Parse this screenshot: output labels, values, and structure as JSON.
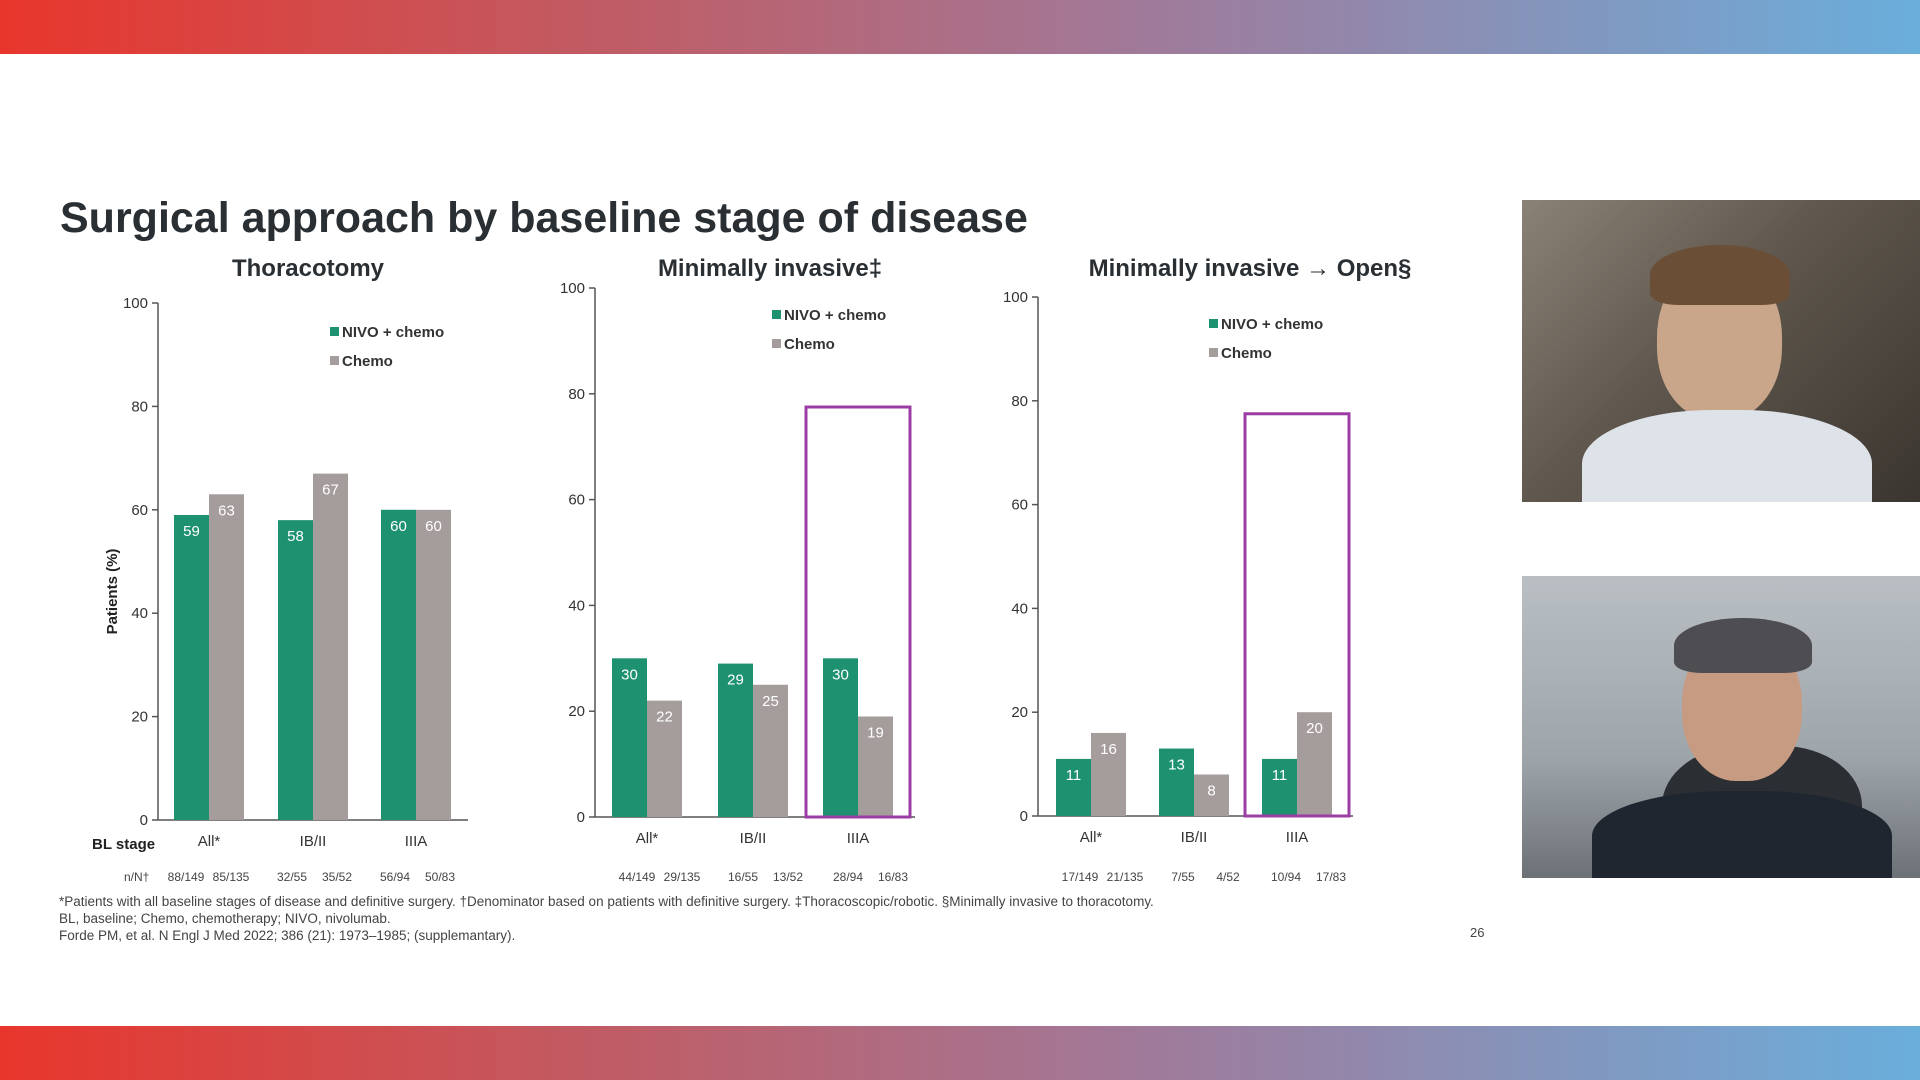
{
  "slide": {
    "title": "Surgical approach by baseline stage of disease",
    "page_number": "26",
    "footnotes": [
      "*Patients with all baseline stages of disease and definitive surgery. †Denominator based on patients with definitive surgery. ‡Thoracoscopic/robotic. §Minimally invasive to thoracotomy.",
      "BL, baseline; Chemo, chemotherapy; NIVO, nivolumab.",
      "Forde PM, et al. N Engl J Med 2022; 386 (21): 1973–1985; (supplemantary)."
    ]
  },
  "colors": {
    "nivo": "#1e9270",
    "chemo": "#a59c9c",
    "highlight": "#9b3da4",
    "axis": "#555555"
  },
  "row_labels": {
    "stage": "BL stage",
    "n": "n/N†"
  },
  "video_tiles": [
    {
      "name": "speaker-1-video",
      "description": "participant"
    },
    {
      "name": "speaker-2-video",
      "description": "participant"
    }
  ],
  "chart_data": [
    {
      "type": "bar",
      "title": "Thoracotomy",
      "ylabel": "Patients (%)",
      "ylim": [
        0,
        100
      ],
      "yticks": [
        0,
        20,
        40,
        60,
        80,
        100
      ],
      "categories": [
        "All*",
        "IB/II",
        "IIIA"
      ],
      "n_labels": [
        [
          "88/149",
          "85/135"
        ],
        [
          "32/55",
          "35/52"
        ],
        [
          "56/94",
          "50/83"
        ]
      ],
      "series": [
        {
          "name": "NIVO + chemo",
          "values": [
            59,
            58,
            60
          ]
        },
        {
          "name": "Chemo",
          "values": [
            63,
            67,
            60
          ]
        }
      ],
      "legend": "top-right",
      "highlight_category": null
    },
    {
      "type": "bar",
      "title": "Minimally invasive‡",
      "ylabel": "",
      "ylim": [
        0,
        100
      ],
      "yticks": [
        0,
        20,
        40,
        60,
        80,
        100
      ],
      "categories": [
        "All*",
        "IB/II",
        "IIIA"
      ],
      "n_labels": [
        [
          "44/149",
          "29/135"
        ],
        [
          "16/55",
          "13/52"
        ],
        [
          "28/94",
          "16/83"
        ]
      ],
      "series": [
        {
          "name": "NIVO + chemo",
          "values": [
            30,
            29,
            30
          ]
        },
        {
          "name": "Chemo",
          "values": [
            22,
            25,
            19
          ]
        }
      ],
      "legend": "top-right",
      "highlight_category": "IIIA"
    },
    {
      "type": "bar",
      "title": "Minimally invasive → Open§",
      "ylabel": "",
      "ylim": [
        0,
        100
      ],
      "yticks": [
        0,
        20,
        40,
        60,
        80,
        100
      ],
      "categories": [
        "All*",
        "IB/II",
        "IIIA"
      ],
      "n_labels": [
        [
          "17/149",
          "21/135"
        ],
        [
          "7/55",
          "4/52"
        ],
        [
          "10/94",
          "17/83"
        ]
      ],
      "series": [
        {
          "name": "NIVO + chemo",
          "values": [
            11,
            13,
            11
          ]
        },
        {
          "name": "Chemo",
          "values": [
            16,
            8,
            20
          ]
        }
      ],
      "legend": "top-right",
      "highlight_category": "IIIA"
    }
  ]
}
